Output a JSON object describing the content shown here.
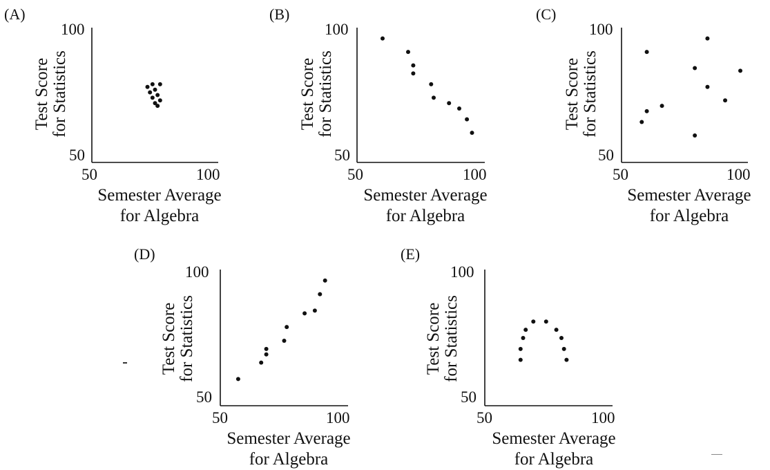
{
  "common": {
    "ylabel_line1": "Test Score",
    "ylabel_line2": "for Statistics",
    "xlabel_line1": "Semester Average",
    "xlabel_line2": "for Algebra",
    "x_ticks": [
      "50",
      "100"
    ],
    "y_ticks": [
      "50",
      "100"
    ]
  },
  "chart_data": [
    {
      "type": "scatter",
      "title": "(A)",
      "xlabel": "Semester Average for Algebra",
      "ylabel": "Test Score for Statistics",
      "xlim": [
        50,
        100
      ],
      "ylim": [
        50,
        100
      ],
      "points": [
        [
          72,
          78
        ],
        [
          74,
          79
        ],
        [
          77,
          79
        ],
        [
          73,
          76
        ],
        [
          75,
          77
        ],
        [
          74,
          74
        ],
        [
          76,
          75
        ],
        [
          75,
          72
        ],
        [
          77,
          73
        ],
        [
          76,
          71
        ]
      ]
    },
    {
      "type": "scatter",
      "title": "(B)",
      "xlabel": "Semester Average for Algebra",
      "ylabel": "Test Score for Statistics",
      "xlim": [
        50,
        100
      ],
      "ylim": [
        50,
        100
      ],
      "points": [
        [
          60,
          96
        ],
        [
          70,
          91
        ],
        [
          72,
          86
        ],
        [
          72,
          83
        ],
        [
          79,
          79
        ],
        [
          80,
          74
        ],
        [
          86,
          72
        ],
        [
          90,
          70
        ],
        [
          93,
          66
        ],
        [
          95,
          61
        ]
      ]
    },
    {
      "type": "scatter",
      "title": "(C)",
      "xlabel": "Semester Average for Algebra",
      "ylabel": "Test Score for Statistics",
      "xlim": [
        50,
        100
      ],
      "ylim": [
        50,
        100
      ],
      "points": [
        [
          60,
          91
        ],
        [
          84,
          96
        ],
        [
          79,
          85
        ],
        [
          97,
          84
        ],
        [
          84,
          78
        ],
        [
          91,
          73
        ],
        [
          66,
          71
        ],
        [
          60,
          69
        ],
        [
          58,
          65
        ],
        [
          79,
          60
        ]
      ]
    },
    {
      "type": "scatter",
      "title": "(D)",
      "xlabel": "Semester Average for Algebra",
      "ylabel": "Test Score for Statistics",
      "xlim": [
        50,
        100
      ],
      "ylim": [
        50,
        100
      ],
      "points": [
        [
          57,
          60
        ],
        [
          66,
          66
        ],
        [
          68,
          69
        ],
        [
          68,
          71
        ],
        [
          75,
          74
        ],
        [
          76,
          79
        ],
        [
          83,
          84
        ],
        [
          87,
          85
        ],
        [
          89,
          91
        ],
        [
          91,
          96
        ]
      ]
    },
    {
      "type": "scatter",
      "title": "(E)",
      "xlabel": "Semester Average for Algebra",
      "ylabel": "Test Score for Statistics",
      "xlim": [
        50,
        100
      ],
      "ylim": [
        50,
        100
      ],
      "points": [
        [
          64,
          67
        ],
        [
          64,
          71
        ],
        [
          65,
          75
        ],
        [
          66,
          78
        ],
        [
          69,
          81
        ],
        [
          74,
          81
        ],
        [
          78,
          78
        ],
        [
          80,
          75
        ],
        [
          81,
          71
        ],
        [
          82,
          67
        ]
      ]
    }
  ]
}
